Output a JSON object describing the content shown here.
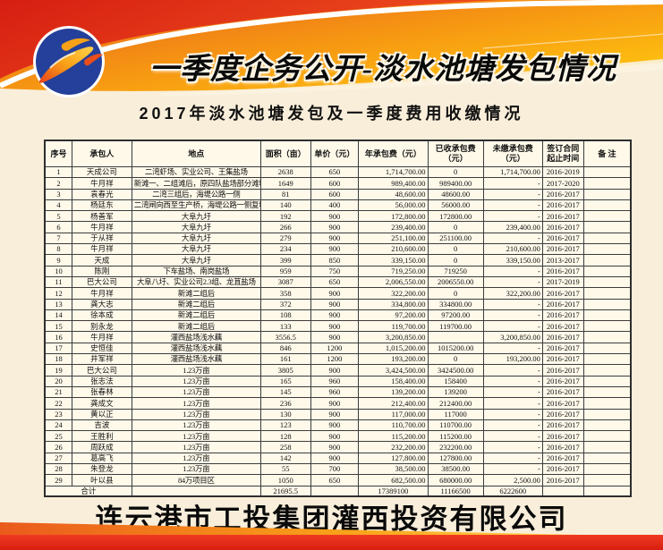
{
  "banner": {
    "title": "一季度企务公开-淡水池塘发包情况",
    "logo": "guanxi-investment-logo"
  },
  "subtitle": "2017年淡水池塘发包及一季度费用收缴情况",
  "table": {
    "columns": [
      "序号",
      "承包人",
      "地点",
      "面积（亩）",
      "单价（元）",
      "年承包费（元）",
      "已收承包费\n（元）",
      "未缴承包费\n（元）",
      "签订合同\n起止时间",
      "备 注"
    ],
    "column_keys": [
      "no",
      "contractor",
      "location",
      "area_mu",
      "unit_price_yuan",
      "annual_fee_yuan",
      "received_fee_yuan",
      "unpaid_fee_yuan",
      "contract_period",
      "note"
    ],
    "rows": [
      [
        "1",
        "天成公司",
        "二湾虾场、实业公司、王集盐场",
        "2638",
        "650",
        "1,714,700.00",
        "0",
        "1,714,700.00",
        "2016-2019",
        ""
      ],
      [
        "2",
        "牛月祥",
        "新滩一、二组滩后，原四队盐场部分滩地",
        "1649",
        "600",
        "989,400.00",
        "989400.00",
        "-",
        "2017-2020",
        ""
      ],
      [
        "3",
        "袁春光",
        "二湾三组后，海堤公路一侧",
        "81",
        "600",
        "48,600.00",
        "48600.00",
        "-",
        "2016-2017",
        ""
      ],
      [
        "4",
        "杨廷东",
        "二湾闸向西至生产桥，海堤公路一侧复堆河",
        "140",
        "400",
        "56,000.00",
        "56000.00",
        "-",
        "2016-2017",
        ""
      ],
      [
        "5",
        "杨善军",
        "大阜九圩",
        "192",
        "900",
        "172,800.00",
        "172800.00",
        "-",
        "2016-2017",
        ""
      ],
      [
        "6",
        "牛月祥",
        "大阜九圩",
        "266",
        "900",
        "239,400.00",
        "0",
        "239,400.00",
        "2016-2017",
        ""
      ],
      [
        "7",
        "于从祥",
        "大阜九圩",
        "279",
        "900",
        "251,100.00",
        "251100.00",
        "-",
        "2016-2017",
        ""
      ],
      [
        "8",
        "牛月祥",
        "大阜九圩",
        "234",
        "900",
        "210,600.00",
        "0",
        "210,600.00",
        "2016-2017",
        ""
      ],
      [
        "9",
        "天成",
        "大阜九圩",
        "399",
        "850",
        "339,150.00",
        "0",
        "339,150.00",
        "2013-2017",
        ""
      ],
      [
        "10",
        "陈刚",
        "下车盐场、南岗盐场",
        "959",
        "750",
        "719,250.00",
        "719250",
        "-",
        "2016-2017",
        ""
      ],
      [
        "11",
        "巴大公司",
        "大阜八圩、实业公司2.3组、龙苴盐场",
        "3087",
        "650",
        "2,006,550.00",
        "2006550.00",
        "-",
        "2017-2019",
        ""
      ],
      [
        "12",
        "牛月祥",
        "新滩二组后",
        "358",
        "900",
        "322,200.00",
        "0",
        "322,200.00",
        "2016-2017",
        ""
      ],
      [
        "13",
        "龚大志",
        "新滩二组后",
        "372",
        "900",
        "334,800.00",
        "334800.00",
        "-",
        "2016-2017",
        ""
      ],
      [
        "14",
        "徐本成",
        "新滩二组后",
        "108",
        "900",
        "97,200.00",
        "97200.00",
        "-",
        "2016-2017",
        ""
      ],
      [
        "15",
        "别永龙",
        "新滩二组后",
        "133",
        "900",
        "119,700.00",
        "119700.00",
        "-",
        "2016-2017",
        ""
      ],
      [
        "16",
        "牛月祥",
        "灌西盐场浅水藕",
        "3556.5",
        "900",
        "3,200,850.00",
        "",
        "3,200,850.00",
        "2016-2017",
        ""
      ],
      [
        "17",
        "史恒佳",
        "灌西盐场浅水藕",
        "846",
        "1200",
        "1,015,200.00",
        "1015200.00",
        "-",
        "2016-2017",
        ""
      ],
      [
        "18",
        "井军祥",
        "灌西盐场浅水藕",
        "161",
        "1200",
        "193,200.00",
        "0",
        "193,200.00",
        "2016-2017",
        ""
      ],
      [
        "19",
        "巴大公司",
        "1.23万亩",
        "3805",
        "900",
        "3,424,500.00",
        "3424500.00",
        "-",
        "2016-2017",
        ""
      ],
      [
        "20",
        "张志法",
        "1.23万亩",
        "165",
        "960",
        "158,400.00",
        "158400",
        "-",
        "2016-2017",
        ""
      ],
      [
        "21",
        "张春林",
        "1.23万亩",
        "145",
        "960",
        "139,200.00",
        "139200",
        "-",
        "2016-2017",
        ""
      ],
      [
        "22",
        "龚成文",
        "1.23万亩",
        "236",
        "900",
        "212,400.00",
        "212400.00",
        "-",
        "2016-2017",
        ""
      ],
      [
        "23",
        "黄以正",
        "1.23万亩",
        "130",
        "900",
        "117,000.00",
        "117000",
        "-",
        "2016-2017",
        ""
      ],
      [
        "24",
        "吉波",
        "1.23万亩",
        "123",
        "900",
        "110,700.00",
        "110700.00",
        "-",
        "2016-2017",
        ""
      ],
      [
        "25",
        "王胜利",
        "1.23万亩",
        "128",
        "900",
        "115,200.00",
        "115200.00",
        "-",
        "2016-2017",
        ""
      ],
      [
        "26",
        "周跃成",
        "1.23万亩",
        "258",
        "900",
        "232,200.00",
        "232200.00",
        "-",
        "2016-2017",
        ""
      ],
      [
        "27",
        "葛高飞",
        "1.23万亩",
        "142",
        "900",
        "127,800.00",
        "127800.00",
        "-",
        "2016-2017",
        ""
      ],
      [
        "28",
        "朱登龙",
        "1.23万亩",
        "55",
        "700",
        "38,500.00",
        "38500.00",
        "-",
        "2016-2017",
        ""
      ],
      [
        "29",
        "叶以县",
        "84万项目区",
        "1050",
        "650",
        "682,500.00",
        "680000.00",
        "2,500.00",
        "2016-2017",
        ""
      ]
    ],
    "total": {
      "label": "合计",
      "location": "",
      "area": "21695.5",
      "unit_price": "",
      "annual_fee": "17389100",
      "received": "11166500",
      "unpaid": "6222600",
      "period": "",
      "note": ""
    }
  },
  "footer": {
    "company": "连云港市工投集团灌西投资有限公司"
  },
  "colors": {
    "banner_red": "#DC2A1A",
    "banner_orange": "#F07A17",
    "banner_yellow": "#FFC60E",
    "logo_blue": "#24409B",
    "page_cream": "#F9EEDA",
    "table_bg": "#FFF9EA",
    "bottom_band_red": "#E32619"
  }
}
